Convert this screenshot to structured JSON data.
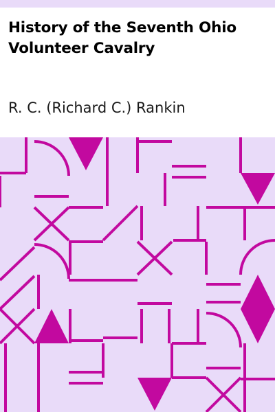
{
  "cover": {
    "title": "History of the Seventh Ohio Volunteer Cavalry",
    "author": "R. C. (Richard C.) Rankin"
  },
  "colors": {
    "band": "#e9dbf9",
    "pattern_bg": "#e9dbf9",
    "pattern_fg": "#c2099f",
    "title_text": "#000000"
  }
}
